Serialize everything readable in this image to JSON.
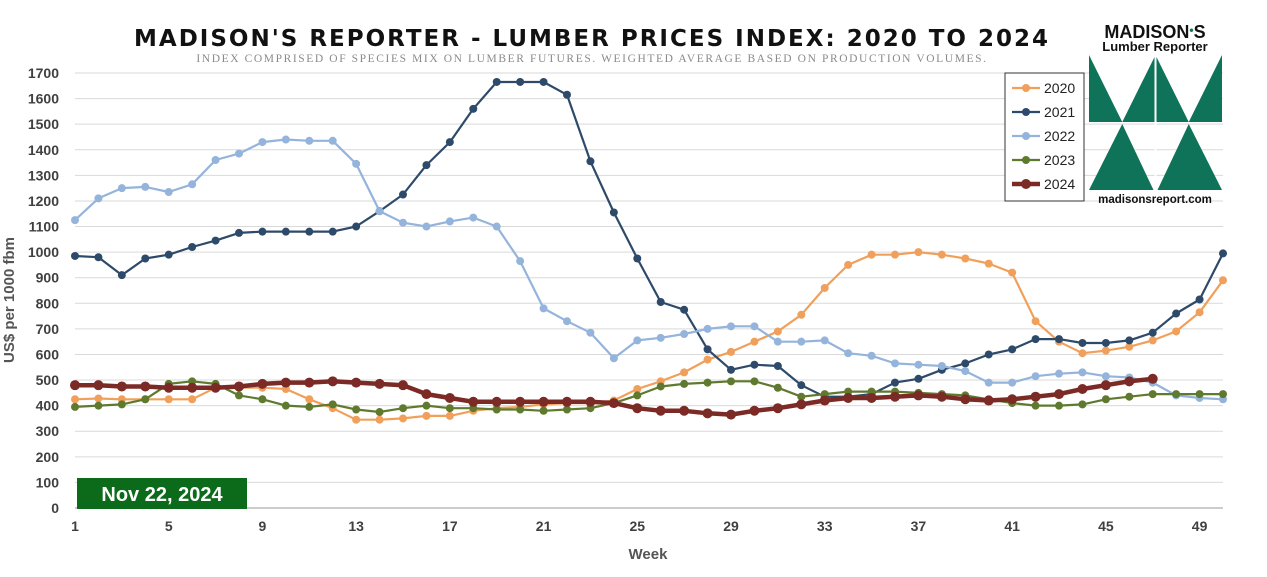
{
  "chart_data": {
    "type": "line",
    "title": "MADISON'S REPORTER - LUMBER PRICES INDEX: 2020 TO 2024",
    "subtitle": "INDEX COMPRISED OF SPECIES MIX ON LUMBER FUTURES. WEIGHTED AVERAGE BASED ON PRODUCTION VOLUMES.",
    "xlabel": "Week",
    "ylabel": "US$ per 1000 fbm",
    "xlim": [
      1,
      50
    ],
    "ylim": [
      0,
      1700
    ],
    "x_ticks": [
      1,
      5,
      9,
      13,
      17,
      21,
      25,
      29,
      33,
      37,
      41,
      45,
      49
    ],
    "y_ticks": [
      0,
      100,
      200,
      300,
      400,
      500,
      600,
      700,
      800,
      900,
      1000,
      1100,
      1200,
      1300,
      1400,
      1500,
      1600,
      1700
    ],
    "grid": "horizontal",
    "legend_position": "right",
    "date_badge": "Nov 22, 2024",
    "logo": {
      "name_left": "MADISON",
      "name_right": "S",
      "subname": "Lumber Reporter",
      "url": "madisonsreport.com",
      "color": "#0e7358"
    },
    "series": [
      {
        "name": "2020",
        "color": "#f0a05a",
        "values": [
          425,
          428,
          425,
          425,
          425,
          425,
          470,
          470,
          470,
          465,
          425,
          390,
          345,
          345,
          350,
          360,
          360,
          380,
          390,
          395,
          405,
          410,
          410,
          420,
          465,
          495,
          530,
          580,
          610,
          650,
          690,
          755,
          860,
          950,
          990,
          990,
          1000,
          990,
          975,
          955,
          920,
          730,
          650,
          605,
          615,
          630,
          655,
          690,
          765,
          890
        ]
      },
      {
        "name": "2021",
        "color": "#2e4a6a",
        "values": [
          985,
          980,
          910,
          975,
          990,
          1020,
          1045,
          1075,
          1080,
          1080,
          1080,
          1080,
          1100,
          1160,
          1225,
          1340,
          1430,
          1560,
          1665,
          1665,
          1665,
          1615,
          1355,
          1155,
          975,
          805,
          775,
          620,
          540,
          560,
          555,
          480,
          435,
          435,
          445,
          490,
          505,
          540,
          565,
          600,
          620,
          660,
          660,
          645,
          645,
          655,
          685,
          760,
          815,
          995
        ]
      },
      {
        "name": "2022",
        "color": "#94b4db",
        "values": [
          1125,
          1210,
          1250,
          1255,
          1235,
          1265,
          1360,
          1385,
          1430,
          1440,
          1435,
          1435,
          1345,
          1160,
          1115,
          1100,
          1120,
          1135,
          1100,
          965,
          780,
          730,
          685,
          585,
          655,
          665,
          680,
          700,
          710,
          710,
          650,
          650,
          655,
          605,
          595,
          565,
          560,
          555,
          535,
          490,
          490,
          515,
          525,
          530,
          515,
          510,
          490,
          440,
          430,
          425
        ]
      },
      {
        "name": "2023",
        "color": "#5f7a2e",
        "values": [
          395,
          400,
          405,
          425,
          485,
          495,
          485,
          440,
          425,
          400,
          395,
          405,
          385,
          375,
          390,
          400,
          390,
          390,
          385,
          385,
          380,
          385,
          390,
          410,
          440,
          475,
          485,
          490,
          495,
          495,
          470,
          435,
          445,
          455,
          455,
          455,
          450,
          445,
          440,
          425,
          410,
          400,
          400,
          405,
          425,
          435,
          445,
          445,
          445,
          445
        ]
      },
      {
        "name": "2024",
        "color": "#7b2a25",
        "values": [
          480,
          480,
          475,
          475,
          470,
          470,
          470,
          475,
          485,
          490,
          490,
          495,
          490,
          485,
          480,
          445,
          430,
          415,
          415,
          415,
          415,
          415,
          415,
          410,
          390,
          380,
          380,
          370,
          365,
          380,
          390,
          405,
          420,
          430,
          430,
          435,
          440,
          435,
          425,
          420,
          425,
          435,
          445,
          465,
          480,
          495,
          505
        ]
      }
    ]
  }
}
